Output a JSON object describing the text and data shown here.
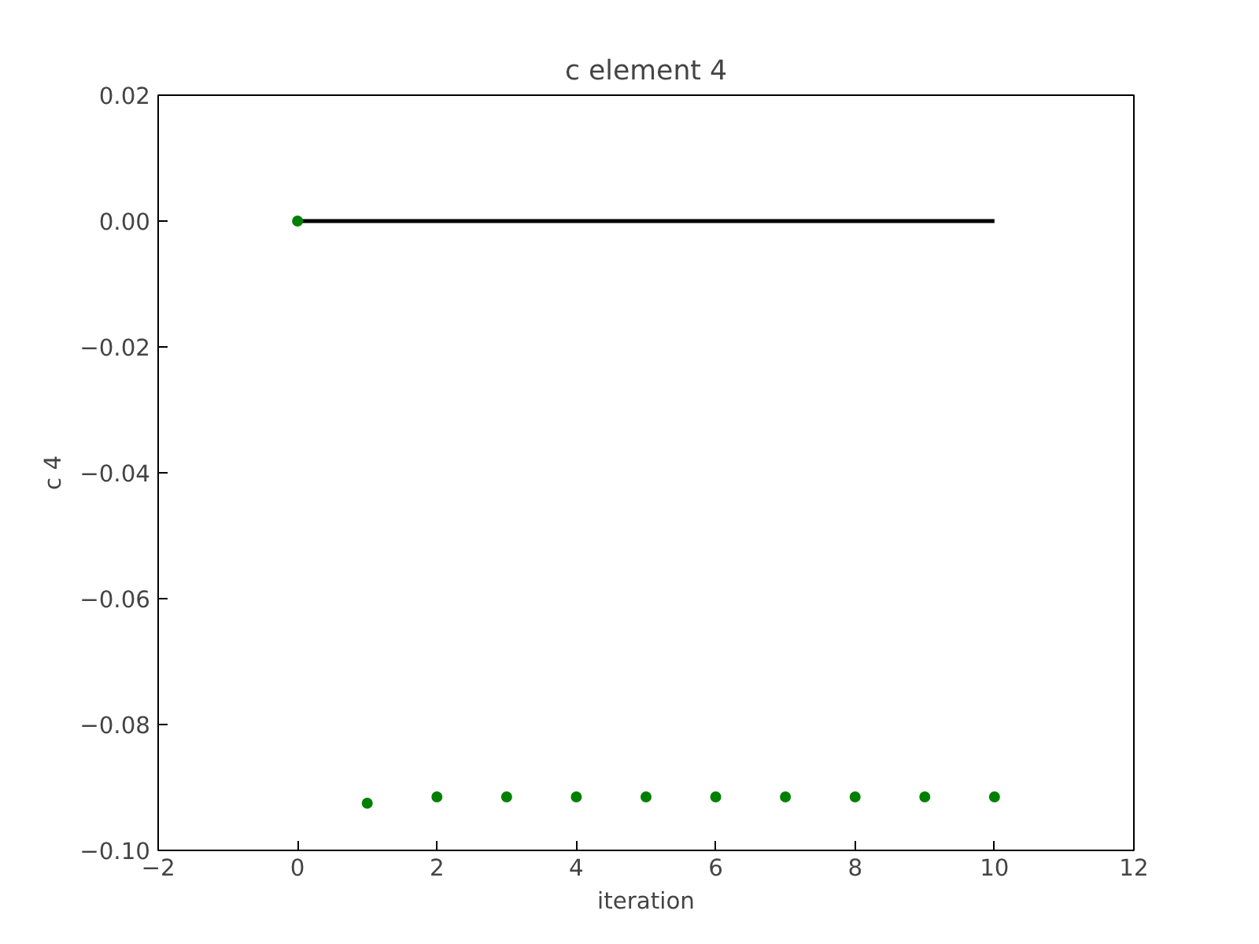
{
  "chart_data": {
    "type": "scatter",
    "title": "c element 4",
    "xlabel": "iteration",
    "ylabel": "c 4",
    "xlim": [
      -2,
      12
    ],
    "ylim": [
      -0.1,
      0.02
    ],
    "xticks": [
      {
        "value": -2,
        "label": "−2"
      },
      0,
      2,
      4,
      6,
      8,
      10,
      12
    ],
    "yticks": [
      {
        "value": -0.1,
        "label": "−0.10"
      },
      {
        "value": -0.08,
        "label": "−0.08"
      },
      {
        "value": -0.06,
        "label": "−0.06"
      },
      {
        "value": -0.04,
        "label": "−0.04"
      },
      {
        "value": -0.02,
        "label": "−0.02"
      },
      {
        "value": 0,
        "label": "0.00"
      },
      {
        "value": 0.02,
        "label": "0.02"
      }
    ],
    "grid": false,
    "series": [
      {
        "type": "line",
        "color": "#000000",
        "x": [
          0,
          10
        ],
        "values": [
          0,
          0
        ],
        "line_style": "solid"
      },
      {
        "marker": "circle",
        "color": "#008000",
        "x": [
          0,
          1,
          2,
          3,
          4,
          5,
          6,
          7,
          8,
          9,
          10
        ],
        "values": [
          0,
          -0.0925,
          -0.0915,
          -0.0915,
          -0.0915,
          -0.0915,
          -0.0915,
          -0.0915,
          -0.0915,
          -0.0915,
          -0.0915
        ]
      }
    ]
  }
}
